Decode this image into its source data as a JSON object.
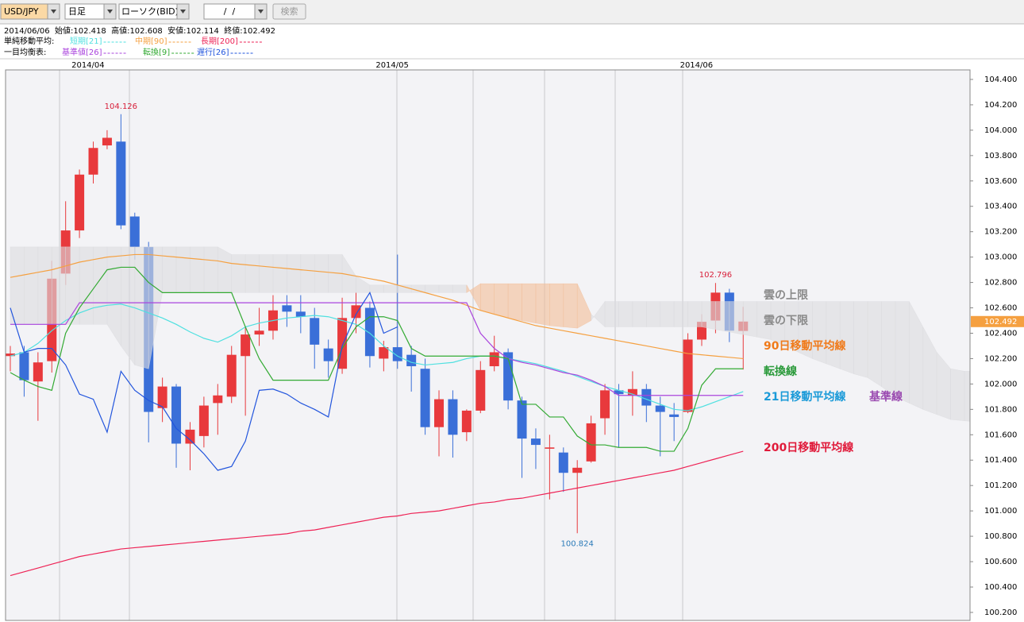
{
  "toolbar": {
    "pair": "USD/JPY",
    "period": "日足",
    "chart_kind": "ローソク(BID)",
    "date": " /  / ",
    "search": "検索"
  },
  "info": "2014/06/06  始値:102.418  高値:102.608  安値:102.114  終値:102.492",
  "legend_groups": [
    "単純移動平均:",
    "一目均衡表:"
  ],
  "chart_data": {
    "type": "candlestick",
    "categories": [
      null,
      null,
      null,
      null,
      null,
      "2014/04",
      null,
      null,
      null,
      null,
      null,
      null,
      null,
      null,
      null,
      null,
      null,
      null,
      null,
      null,
      null,
      null,
      null,
      null,
      null,
      null,
      null,
      "2014/05",
      null,
      null,
      null,
      null,
      null,
      null,
      null,
      null,
      null,
      null,
      null,
      null,
      null,
      null,
      null,
      null,
      null,
      null,
      null,
      null,
      null,
      "2014/06",
      null,
      null,
      null,
      null,
      null,
      null,
      null,
      null,
      null,
      null,
      null,
      null,
      null,
      null,
      null,
      null,
      null,
      null,
      null,
      null,
      null
    ],
    "open": [
      102.22,
      102.25,
      102.02,
      102.18,
      102.87,
      103.21,
      103.65,
      103.88,
      103.91,
      103.32,
      103.08,
      101.81,
      101.98,
      101.53,
      101.59,
      101.85,
      101.9,
      102.22,
      102.39,
      102.42,
      102.62,
      102.57,
      102.52,
      102.28,
      102.12,
      102.52,
      102.6,
      102.2,
      102.29,
      102.23,
      102.12,
      101.66,
      101.88,
      101.62,
      101.79,
      102.14,
      102.25,
      101.87,
      101.57,
      101.49,
      101.46,
      101.3,
      101.39,
      101.73,
      101.95,
      101.91,
      101.96,
      101.83,
      101.76,
      101.78,
      102.35,
      102.5,
      102.72,
      102.418,
      null,
      null,
      null,
      null,
      null,
      null,
      null,
      null,
      null,
      null,
      null,
      null,
      null,
      null,
      null,
      null,
      null
    ],
    "high": [
      102.3,
      102.3,
      102.25,
      102.97,
      103.44,
      103.69,
      103.91,
      104.0,
      104.126,
      103.35,
      103.12,
      102.05,
      102.0,
      101.7,
      101.9,
      102.0,
      102.3,
      102.45,
      102.6,
      102.7,
      102.7,
      102.7,
      102.6,
      102.35,
      102.68,
      102.72,
      102.65,
      102.34,
      103.02,
      102.3,
      102.2,
      101.95,
      101.95,
      101.8,
      102.18,
      102.38,
      102.28,
      101.9,
      101.65,
      101.6,
      101.5,
      101.4,
      101.75,
      102.0,
      102.0,
      102.1,
      102.0,
      101.9,
      101.85,
      102.4,
      102.55,
      102.796,
      102.75,
      102.608,
      null,
      null,
      null,
      null,
      null,
      null,
      null,
      null,
      null,
      null,
      null,
      null,
      null,
      null,
      null,
      null,
      null
    ],
    "low": [
      102.1,
      101.9,
      101.71,
      102.09,
      102.78,
      103.15,
      103.58,
      103.85,
      103.22,
      102.98,
      101.54,
      101.7,
      101.34,
      101.32,
      101.5,
      101.6,
      101.85,
      101.75,
      102.3,
      102.35,
      102.45,
      102.4,
      102.12,
      102.05,
      102.08,
      102.4,
      102.13,
      102.1,
      102.12,
      101.94,
      101.6,
      101.43,
      101.42,
      101.55,
      101.77,
      102.1,
      101.8,
      101.26,
      101.33,
      101.09,
      101.15,
      100.824,
      101.38,
      101.6,
      101.5,
      101.75,
      101.7,
      101.43,
      101.55,
      101.77,
      102.3,
      102.4,
      102.33,
      102.114,
      null,
      null,
      null,
      null,
      null,
      null,
      null,
      null,
      null,
      null,
      null,
      null,
      null,
      null,
      null,
      null,
      null
    ],
    "close": [
      102.24,
      102.03,
      102.17,
      102.83,
      103.21,
      103.65,
      103.86,
      103.94,
      103.25,
      103.08,
      101.78,
      101.98,
      101.53,
      101.64,
      101.83,
      101.91,
      102.23,
      102.39,
      102.42,
      102.58,
      102.57,
      102.53,
      102.31,
      102.18,
      102.52,
      102.62,
      102.22,
      102.29,
      102.18,
      102.14,
      101.66,
      101.88,
      101.6,
      101.79,
      102.11,
      102.25,
      101.87,
      101.57,
      101.52,
      101.5,
      101.3,
      101.34,
      101.69,
      101.95,
      101.92,
      101.96,
      101.83,
      101.78,
      101.74,
      102.35,
      102.49,
      102.72,
      102.42,
      102.492,
      null,
      null,
      null,
      null,
      null,
      null,
      null,
      null,
      null,
      null,
      null,
      null,
      null,
      null,
      null,
      null,
      null
    ],
    "up_color": "#e8393c",
    "down_color": "#3a6fd8",
    "cloud": [
      {
        "name": "雲の上限",
        "values": [
          103.08,
          103.08,
          103.08,
          103.08,
          103.08,
          103.08,
          103.08,
          103.08,
          103.08,
          103.08,
          103.08,
          103.08,
          103.08,
          103.08,
          103.08,
          103.08,
          103.02,
          103.02,
          103.02,
          103.02,
          103.02,
          103.02,
          103.02,
          103.02,
          103.02,
          102.85,
          102.78,
          102.78,
          102.78,
          102.78,
          102.78,
          102.78,
          102.78,
          102.78,
          102.58,
          102.55,
          102.52,
          102.5,
          102.48,
          102.46,
          102.45,
          102.44,
          102.5,
          102.65,
          102.65,
          102.65,
          102.65,
          102.65,
          102.65,
          102.65,
          102.65,
          102.65,
          102.65,
          102.65,
          102.65,
          102.65,
          102.65,
          102.65,
          102.65,
          102.65,
          102.65,
          102.65,
          102.65,
          102.65,
          102.65,
          102.65,
          102.45,
          102.25,
          102.12,
          102.1,
          102.1
        ]
      },
      {
        "name": "雲の下限",
        "values": [
          102.47,
          102.47,
          102.47,
          102.47,
          102.47,
          102.47,
          102.47,
          102.47,
          102.3,
          102.15,
          102.12,
          102.72,
          102.72,
          102.72,
          102.72,
          102.72,
          102.72,
          102.72,
          102.72,
          102.72,
          102.72,
          102.72,
          102.72,
          102.72,
          102.72,
          102.72,
          102.72,
          102.72,
          102.72,
          102.72,
          102.72,
          102.72,
          102.72,
          102.72,
          102.79,
          102.79,
          102.79,
          102.79,
          102.79,
          102.79,
          102.79,
          102.79,
          102.55,
          102.45,
          102.45,
          102.45,
          102.45,
          102.45,
          102.45,
          102.45,
          102.45,
          102.43,
          102.41,
          102.39,
          102.37,
          102.35,
          102.3,
          102.25,
          102.2,
          102.16,
          102.12,
          102.08,
          102.05,
          101.98,
          101.9,
          101.85,
          101.8,
          101.76,
          101.72,
          101.71,
          101.7
        ]
      }
    ],
    "cloud_color": "#dcdcdf",
    "cloud_twist_color": "#f2bf9a",
    "cloud_label_color": "#8a8a8a",
    "lines": [
      {
        "name": "21日移動平均線",
        "legend": "短期[21]",
        "color": "#4fe0e0",
        "label_color": "#1a9ad8",
        "values": [
          102.22,
          102.25,
          102.32,
          102.42,
          102.5,
          102.56,
          102.6,
          102.62,
          102.63,
          102.6,
          102.56,
          102.52,
          102.47,
          102.41,
          102.36,
          102.33,
          102.38,
          102.45,
          102.48,
          102.5,
          102.52,
          102.53,
          102.54,
          102.53,
          102.5,
          102.47,
          102.4,
          102.3,
          102.22,
          102.17,
          102.15,
          102.16,
          102.17,
          102.2,
          102.22,
          102.22,
          102.2,
          102.18,
          102.16,
          102.13,
          102.1,
          102.06,
          102.02,
          101.98,
          101.95,
          101.92,
          101.88,
          101.84,
          101.8,
          101.79,
          101.82,
          101.86,
          101.9,
          101.94,
          null,
          null,
          null,
          null,
          null,
          null,
          null,
          null,
          null,
          null,
          null,
          null,
          null,
          null,
          null,
          null,
          null
        ]
      },
      {
        "name": "90日移動平均線",
        "legend": "中期[90]",
        "color": "#f5a040",
        "label_color": "#f07a1a",
        "values": [
          102.84,
          102.86,
          102.88,
          102.9,
          102.93,
          102.96,
          102.98,
          103.0,
          103.01,
          103.02,
          103.02,
          103.01,
          103.0,
          102.99,
          102.98,
          102.97,
          102.95,
          102.94,
          102.93,
          102.92,
          102.91,
          102.9,
          102.89,
          102.88,
          102.87,
          102.85,
          102.83,
          102.81,
          102.78,
          102.75,
          102.72,
          102.69,
          102.66,
          102.62,
          102.58,
          102.55,
          102.52,
          102.49,
          102.46,
          102.44,
          102.42,
          102.4,
          102.38,
          102.36,
          102.34,
          102.32,
          102.3,
          102.28,
          102.26,
          102.24,
          102.23,
          102.22,
          102.21,
          102.2,
          null,
          null,
          null,
          null,
          null,
          null,
          null,
          null,
          null,
          null,
          null,
          null,
          null,
          null,
          null,
          null,
          null
        ]
      },
      {
        "name": "200日移動平均線",
        "legend": "長期[200]",
        "color": "#ee2255",
        "label_color": "#e01a3a",
        "values": [
          100.49,
          100.52,
          100.55,
          100.58,
          100.61,
          100.64,
          100.66,
          100.68,
          100.7,
          100.71,
          100.72,
          100.73,
          100.74,
          100.75,
          100.76,
          100.77,
          100.78,
          100.79,
          100.8,
          100.81,
          100.82,
          100.84,
          100.85,
          100.87,
          100.89,
          100.91,
          100.93,
          100.95,
          100.96,
          100.98,
          100.99,
          101.0,
          101.02,
          101.04,
          101.06,
          101.07,
          101.09,
          101.1,
          101.12,
          101.14,
          101.16,
          101.18,
          101.2,
          101.22,
          101.24,
          101.26,
          101.28,
          101.3,
          101.32,
          101.35,
          101.38,
          101.41,
          101.44,
          101.47,
          null,
          null,
          null,
          null,
          null,
          null,
          null,
          null,
          null,
          null,
          null,
          null,
          null,
          null,
          null,
          null,
          null
        ]
      },
      {
        "name": "基準線",
        "legend": "基準値[26]",
        "color": "#aa44dd",
        "label_color": "#9a4ab0",
        "values": [
          102.47,
          102.47,
          102.47,
          102.47,
          102.47,
          102.64,
          102.64,
          102.64,
          102.64,
          102.64,
          102.64,
          102.64,
          102.64,
          102.64,
          102.64,
          102.64,
          102.64,
          102.64,
          102.64,
          102.64,
          102.64,
          102.64,
          102.64,
          102.64,
          102.64,
          102.64,
          102.64,
          102.64,
          102.64,
          102.64,
          102.64,
          102.64,
          102.64,
          102.64,
          102.4,
          102.28,
          102.2,
          102.17,
          102.15,
          102.12,
          102.09,
          102.07,
          102.03,
          101.98,
          101.91,
          101.91,
          101.91,
          101.91,
          101.91,
          101.91,
          101.91,
          101.91,
          101.91,
          101.91,
          null,
          null,
          null,
          null,
          null,
          null,
          null,
          null,
          null,
          null,
          null,
          null,
          null,
          null,
          null,
          null,
          null
        ]
      },
      {
        "name": "転換線",
        "legend": "転換[9]",
        "color": "#33aa33",
        "label_color": "#2a9a3a",
        "values": [
          102.09,
          102.03,
          101.98,
          101.95,
          102.4,
          102.6,
          102.75,
          102.9,
          102.92,
          102.92,
          102.8,
          102.72,
          102.72,
          102.72,
          102.72,
          102.72,
          102.72,
          102.45,
          102.2,
          102.03,
          102.03,
          102.03,
          102.03,
          102.03,
          102.28,
          102.45,
          102.53,
          102.53,
          102.5,
          102.28,
          102.22,
          102.22,
          102.22,
          102.22,
          102.22,
          102.22,
          102.2,
          101.84,
          101.84,
          101.74,
          101.74,
          101.59,
          101.52,
          101.52,
          101.5,
          101.5,
          101.5,
          101.47,
          101.47,
          101.65,
          101.99,
          102.12,
          102.12,
          102.12,
          null,
          null,
          null,
          null,
          null,
          null,
          null,
          null,
          null,
          null,
          null,
          null,
          null,
          null,
          null,
          null,
          null
        ]
      },
      {
        "legend": "遅行[26]",
        "color": "#2255dd",
        "values": [
          102.6,
          102.25,
          102.28,
          102.28,
          102.15,
          101.92,
          101.88,
          101.62,
          102.1,
          101.95,
          101.87,
          101.82,
          101.65,
          101.56,
          101.45,
          101.32,
          101.35,
          101.55,
          101.95,
          101.96,
          101.92,
          101.85,
          101.8,
          101.74,
          102.3,
          102.55,
          102.72,
          102.4,
          102.45,
          null,
          null,
          null,
          null,
          null,
          null,
          null,
          null,
          null,
          null,
          null,
          null,
          null,
          null,
          null,
          null,
          null,
          null,
          null,
          null,
          null,
          null,
          null,
          null,
          null,
          null,
          null,
          null,
          null,
          null,
          null,
          null,
          null,
          null,
          null,
          null,
          null,
          null,
          null,
          null,
          null,
          null
        ]
      }
    ],
    "annotations": [
      "chart_data.high.8",
      "chart_data.high.51",
      "chart_data.low.41"
    ],
    "price_tag_color": "#f5a040",
    "ylim": [
      100.137,
      104.475
    ],
    "yticks": [
      {
        "value": 100.2,
        "label": "100.200"
      },
      {
        "value": 100.4,
        "label": "100.400"
      },
      {
        "value": 100.6,
        "label": "100.600"
      },
      {
        "value": 100.8,
        "label": "100.800"
      },
      {
        "value": 101.0,
        "label": "101.000"
      },
      {
        "value": 101.2,
        "label": "101.200"
      },
      {
        "value": 101.4,
        "label": "101.400"
      },
      {
        "value": 101.6,
        "label": "101.600"
      },
      {
        "value": 101.8,
        "label": "101.800"
      },
      {
        "value": 102.0,
        "label": "102.000"
      },
      {
        "value": 102.2,
        "label": "102.200"
      },
      {
        "value": 102.4,
        "label": "102.400"
      },
      {
        "value": 102.6,
        "label": "102.600"
      },
      {
        "value": 102.8,
        "label": "102.800"
      },
      {
        "value": 103.0,
        "label": "103.000"
      },
      {
        "value": 103.2,
        "label": "103.200"
      },
      {
        "value": 103.4,
        "label": "103.400"
      },
      {
        "value": 103.6,
        "label": "103.600"
      },
      {
        "value": 103.8,
        "label": "103.800"
      },
      {
        "value": 104.0,
        "label": "104.000"
      },
      {
        "value": 104.2,
        "label": "104.200"
      },
      {
        "value": 104.4,
        "label": "104.400"
      }
    ]
  }
}
